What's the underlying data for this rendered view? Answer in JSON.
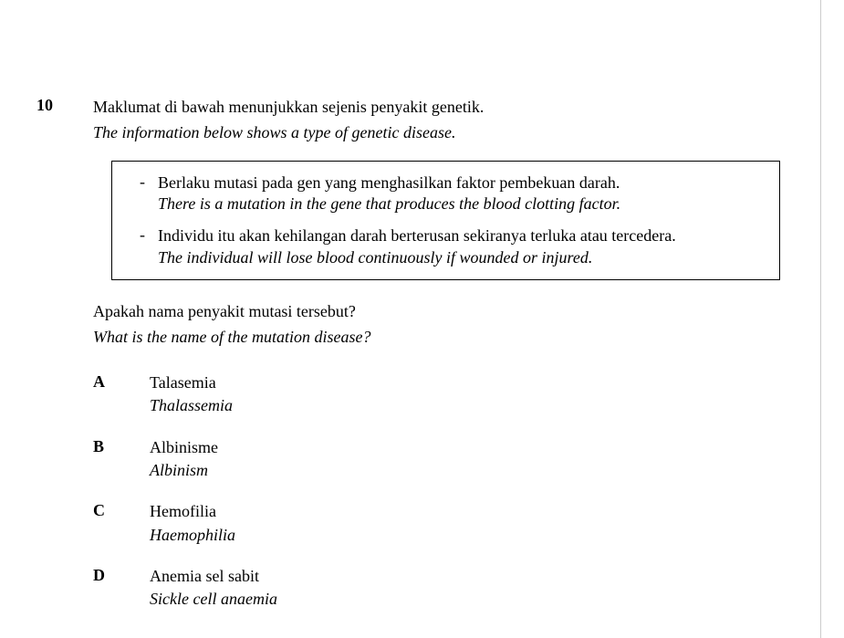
{
  "question": {
    "number": "10",
    "stem_ms": "Maklumat di bawah menunjukkan sejenis penyakit genetik.",
    "stem_en": "The information below shows a type of genetic disease.",
    "info_box": {
      "items": [
        {
          "bullet": "-",
          "ms": "Berlaku mutasi pada gen yang menghasilkan faktor pembekuan darah.",
          "en": "There is a mutation in the gene that produces the blood clotting factor."
        },
        {
          "bullet": "-",
          "ms": "Individu itu akan kehilangan darah berterusan sekiranya terluka atau tercedera.",
          "en": "The individual will lose blood continuously if wounded or injured."
        }
      ]
    },
    "prompt_ms": "Apakah nama penyakit mutasi tersebut?",
    "prompt_en": "What is the name of the mutation disease?",
    "options": [
      {
        "letter": "A",
        "ms": "Talasemia",
        "en": "Thalassemia"
      },
      {
        "letter": "B",
        "ms": "Albinisme",
        "en": "Albinism"
      },
      {
        "letter": "C",
        "ms": "Hemofilia",
        "en": "Haemophilia"
      },
      {
        "letter": "D",
        "ms": "Anemia sel sabit",
        "en": "Sickle cell anaemia"
      }
    ]
  },
  "styling": {
    "font_family": "Times New Roman",
    "body_fontsize": 18,
    "text_color": "#000000",
    "background_color": "#ffffff",
    "box_border_color": "#000000",
    "box_border_width": 1.5,
    "page_edge_color": "#cccccc"
  }
}
